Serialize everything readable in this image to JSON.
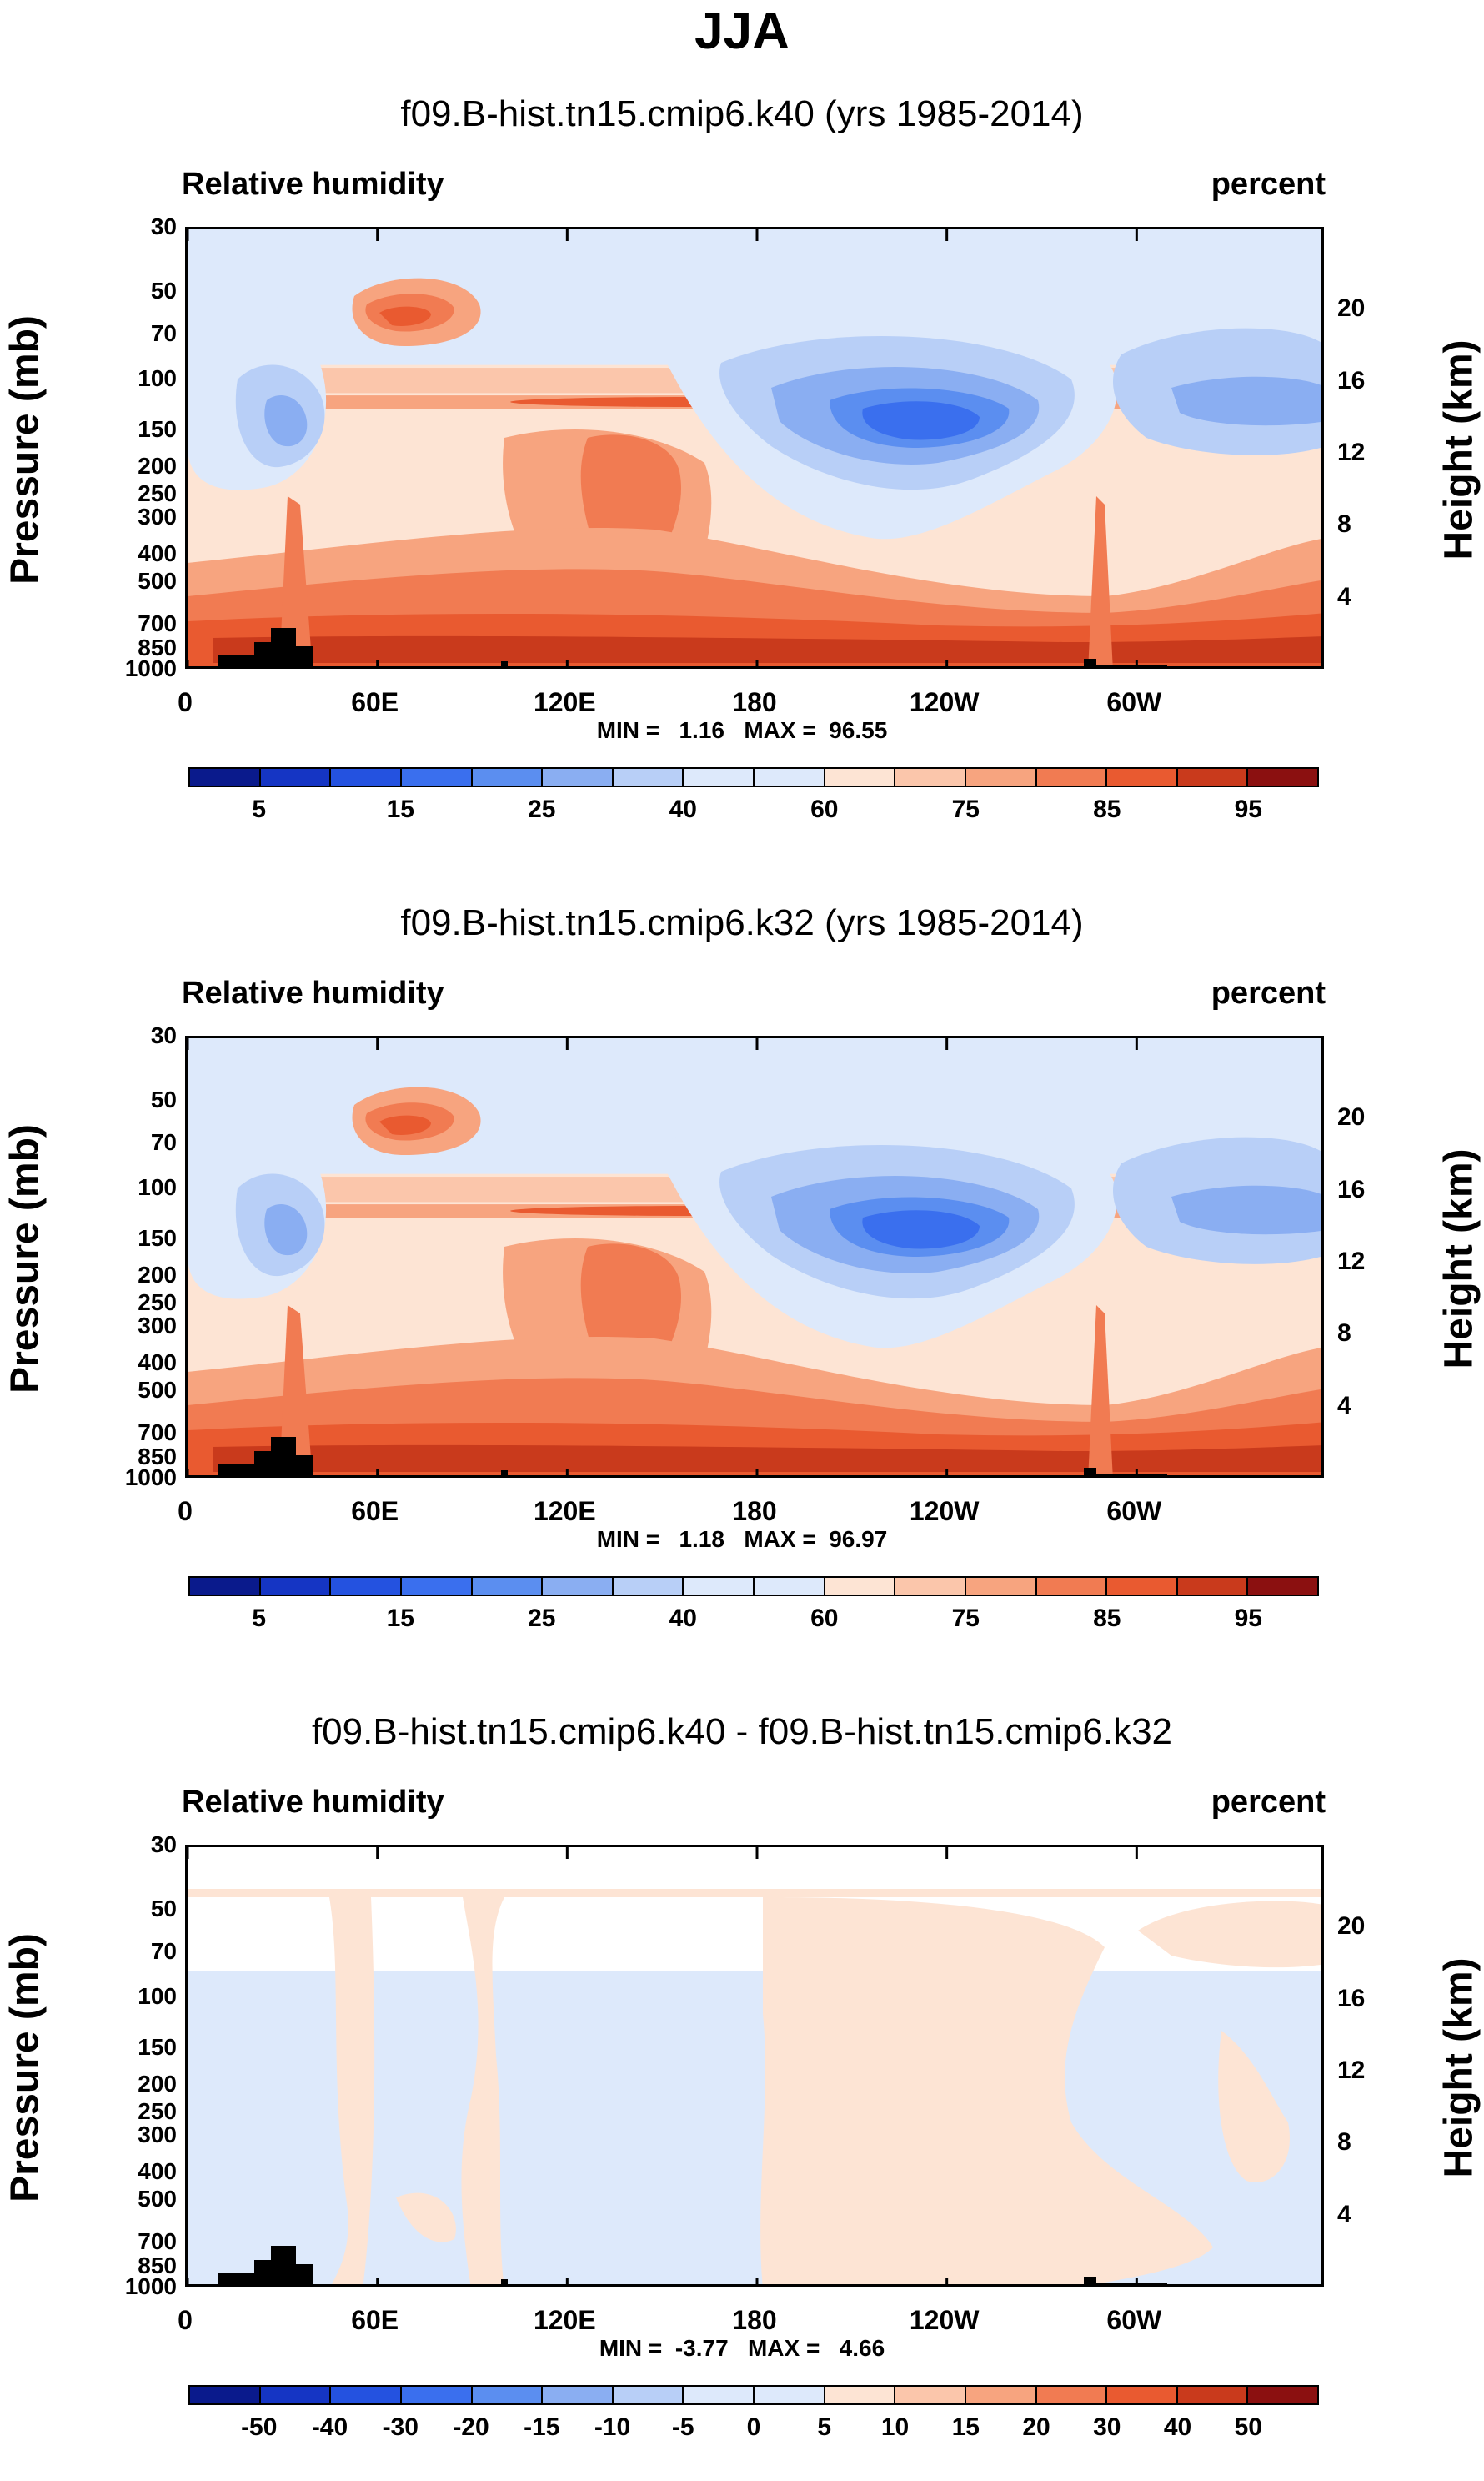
{
  "figure_title": "JJA",
  "chart_data": [
    {
      "type": "heatmap",
      "title": "f09.B-hist.tn15.cmip6.k40 (yrs 1985-2014)",
      "left_label": "Relative humidity",
      "right_label": "percent",
      "ylabel": "Pressure (mb)",
      "ylabel_right": "Height (km)",
      "x_ticks": [
        "0",
        "60E",
        "120E",
        "180",
        "120W",
        "60W"
      ],
      "y_ticks": [
        "30",
        "50",
        "70",
        "100",
        "150",
        "200",
        "250",
        "300",
        "400",
        "500",
        "700",
        "850",
        "1000"
      ],
      "y_ticks_right": [
        "20",
        "16",
        "12",
        "8",
        "4"
      ],
      "stats": "MIN =   1.16   MAX =  96.55",
      "colorbar_labels": [
        "5",
        "15",
        "25",
        "40",
        "60",
        "75",
        "85",
        "95"
      ]
    },
    {
      "type": "heatmap",
      "title": "f09.B-hist.tn15.cmip6.k32 (yrs 1985-2014)",
      "left_label": "Relative humidity",
      "right_label": "percent",
      "ylabel": "Pressure (mb)",
      "ylabel_right": "Height (km)",
      "x_ticks": [
        "0",
        "60E",
        "120E",
        "180",
        "120W",
        "60W"
      ],
      "y_ticks": [
        "30",
        "50",
        "70",
        "100",
        "150",
        "200",
        "250",
        "300",
        "400",
        "500",
        "700",
        "850",
        "1000"
      ],
      "y_ticks_right": [
        "20",
        "16",
        "12",
        "8",
        "4"
      ],
      "stats": "MIN =   1.18   MAX =  96.97",
      "colorbar_labels": [
        "5",
        "15",
        "25",
        "40",
        "60",
        "75",
        "85",
        "95"
      ]
    },
    {
      "type": "heatmap",
      "title": "f09.B-hist.tn15.cmip6.k40 - f09.B-hist.tn15.cmip6.k32",
      "left_label": "Relative humidity",
      "right_label": "percent",
      "ylabel": "Pressure (mb)",
      "ylabel_right": "Height (km)",
      "x_ticks": [
        "0",
        "60E",
        "120E",
        "180",
        "120W",
        "60W"
      ],
      "y_ticks": [
        "30",
        "50",
        "70",
        "100",
        "150",
        "200",
        "250",
        "300",
        "400",
        "500",
        "700",
        "850",
        "1000"
      ],
      "y_ticks_right": [
        "20",
        "16",
        "12",
        "8",
        "4"
      ],
      "stats": "MIN =  -3.77   MAX =   4.66",
      "colorbar_labels": [
        "-50",
        "-40",
        "-30",
        "-20",
        "-15",
        "-10",
        "-5",
        "0",
        "5",
        "10",
        "15",
        "20",
        "30",
        "40",
        "50"
      ]
    }
  ],
  "colorbar_colors": [
    "#0a1a8c",
    "#1535c4",
    "#2452e0",
    "#3a6fee",
    "#5b8ef0",
    "#8aaef2",
    "#b8cff7",
    "#dde9fb",
    "#fde4d4",
    "#fbc6ab",
    "#f7a47f",
    "#f17b52",
    "#e95a30",
    "#c93a1c",
    "#8b1010"
  ]
}
